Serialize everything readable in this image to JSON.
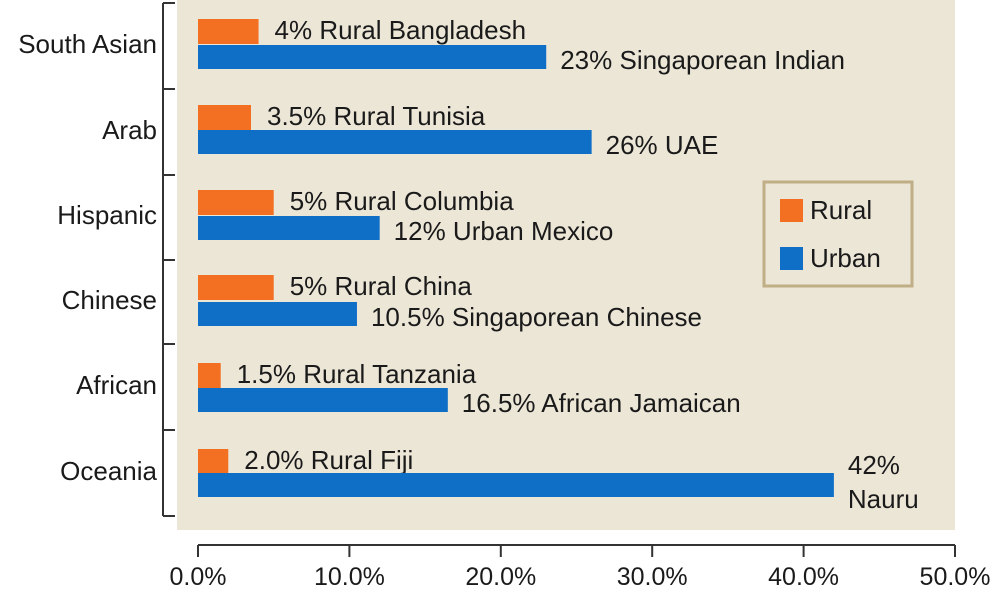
{
  "chart_data": {
    "type": "bar",
    "orientation": "horizontal",
    "categories": [
      "South Asian",
      "Arab",
      "Hispanic",
      "Chinese",
      "African",
      "Oceania"
    ],
    "series": [
      {
        "name": "Rural",
        "color": "#f36f21",
        "values": [
          4,
          3.5,
          5,
          5,
          1.5,
          2.0
        ],
        "labels": [
          "4% Rural Bangladesh",
          "3.5% Rural Tunisia",
          "5% Rural Columbia",
          "5% Rural China",
          "1.5% Rural Tanzania",
          "2.0% Rural Fiji"
        ]
      },
      {
        "name": "Urban",
        "color": "#0f6fc6",
        "values": [
          23,
          26,
          12,
          10.5,
          16.5,
          42
        ],
        "labels": [
          "23% Singaporean Indian",
          "26% UAE",
          "12% Urban Mexico",
          "10.5% Singaporean Chinese",
          "16.5% African Jamaican",
          "42% Nauru"
        ]
      }
    ],
    "x_ticks": [
      "0.0%",
      "10.0%",
      "20.0%",
      "30.0%",
      "40.0%",
      "50.0%"
    ],
    "xlim": [
      0,
      50
    ],
    "legend_position": "right",
    "plot_background": "#ece6d7",
    "grid": false
  }
}
